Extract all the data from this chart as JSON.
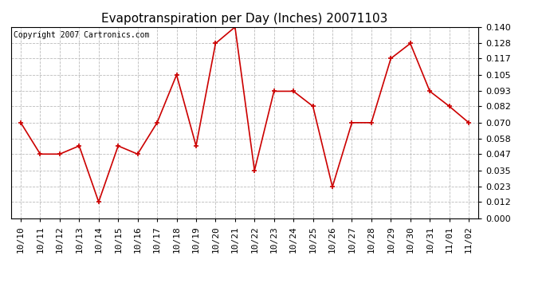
{
  "title": "Evapotranspiration per Day (Inches) 20071103",
  "copyright_text": "Copyright 2007 Cartronics.com",
  "x_labels": [
    "10/10",
    "10/11",
    "10/12",
    "10/13",
    "10/14",
    "10/15",
    "10/16",
    "10/17",
    "10/18",
    "10/19",
    "10/20",
    "10/21",
    "10/22",
    "10/23",
    "10/24",
    "10/25",
    "10/26",
    "10/27",
    "10/28",
    "10/29",
    "10/30",
    "10/31",
    "11/01",
    "11/02"
  ],
  "y_values": [
    0.07,
    0.047,
    0.047,
    0.053,
    0.012,
    0.053,
    0.047,
    0.07,
    0.105,
    0.053,
    0.128,
    0.14,
    0.035,
    0.093,
    0.093,
    0.082,
    0.023,
    0.07,
    0.07,
    0.117,
    0.128,
    0.093,
    0.082,
    0.07
  ],
  "line_color": "#cc0000",
  "marker_color": "#cc0000",
  "bg_color": "#ffffff",
  "grid_color": "#bbbbbb",
  "y_ticks": [
    0.0,
    0.012,
    0.023,
    0.035,
    0.047,
    0.058,
    0.07,
    0.082,
    0.093,
    0.105,
    0.117,
    0.128,
    0.14
  ],
  "ylim": [
    0.0,
    0.1401
  ],
  "title_fontsize": 11,
  "copyright_fontsize": 7,
  "tick_fontsize": 8
}
